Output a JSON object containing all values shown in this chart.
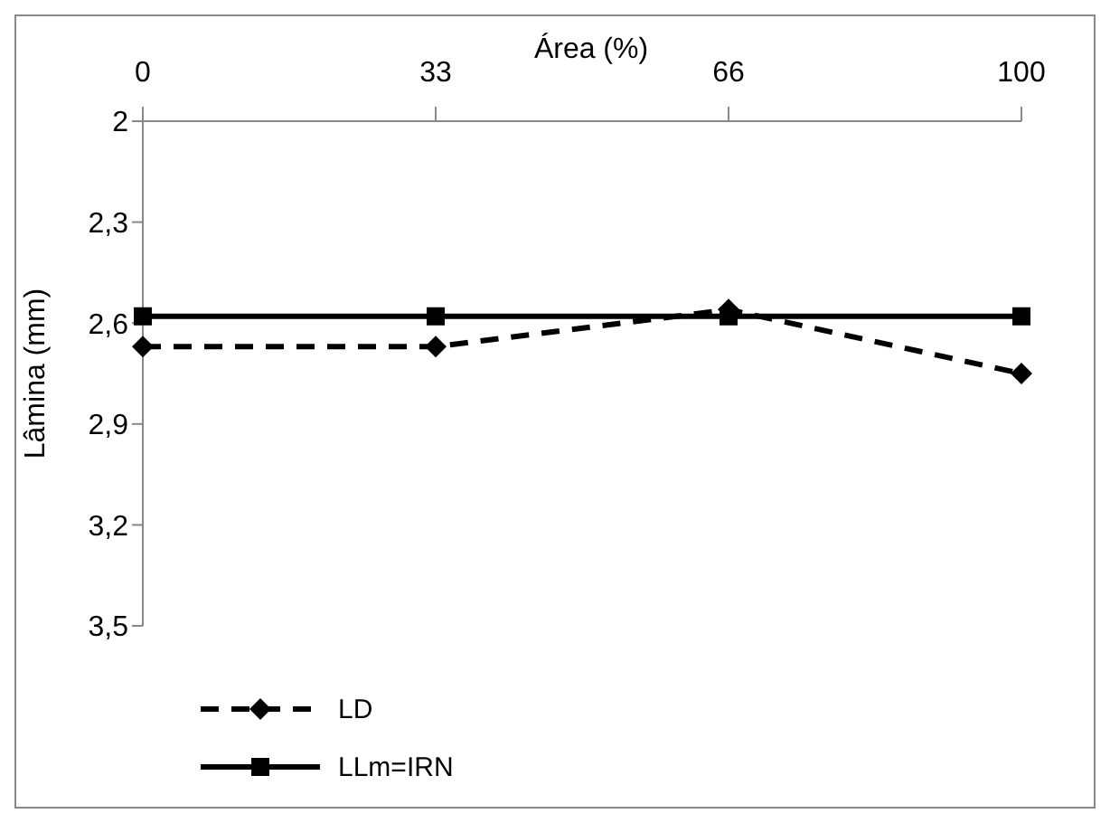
{
  "chart_data": {
    "type": "line",
    "xlabel": "Área (%)",
    "ylabel": "Lâmina  (mm)",
    "categories": [
      "0",
      "33",
      "66",
      "100"
    ],
    "series": [
      {
        "name": "LD",
        "color": "#000000",
        "values": [
          2.67,
          2.67,
          2.56,
          2.75
        ],
        "marker": "diamond",
        "line_style": "dashed"
      },
      {
        "name": "LLm=IRN",
        "color": "#000000",
        "values": [
          2.58,
          2.58,
          2.58,
          2.58
        ],
        "marker": "square",
        "line_style": "solid"
      }
    ],
    "ylim": [
      3.5,
      2
    ],
    "yticks": [
      2,
      {
        "value": 2.3,
        "label": "2,3"
      },
      {
        "value": 2.6,
        "label": "2,6"
      },
      {
        "value": 2.9,
        "label": "2,9"
      },
      {
        "value": 3.2,
        "label": "3,2"
      },
      {
        "value": 3.5,
        "label": "3,5"
      }
    ],
    "grid": false,
    "legend": "bottom left"
  }
}
